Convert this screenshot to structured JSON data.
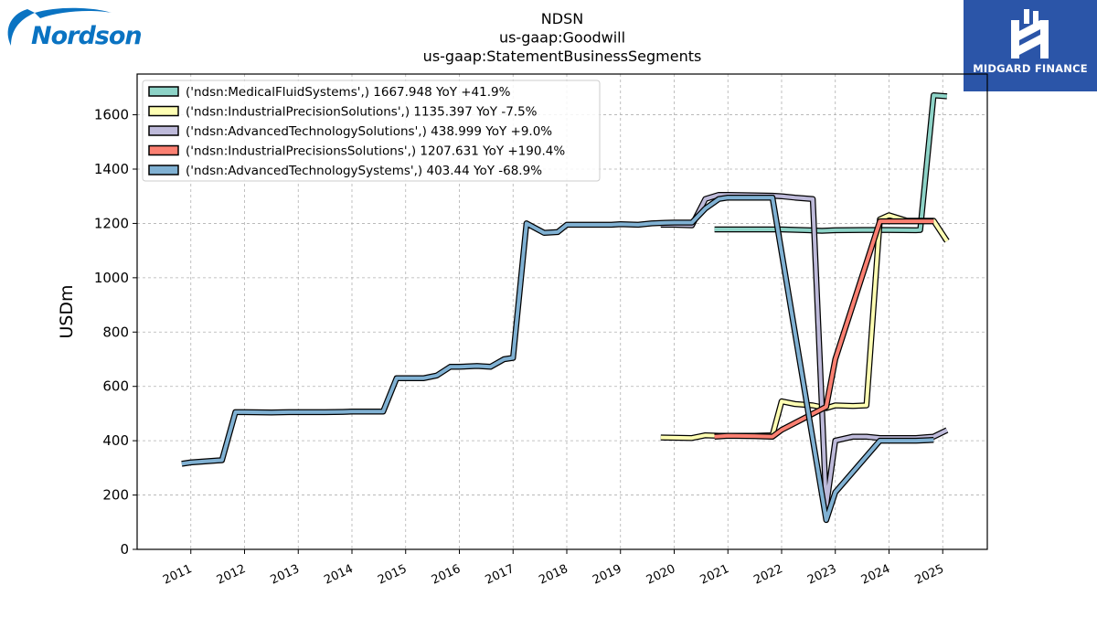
{
  "header": {
    "left_logo_text": "Nordson",
    "right_logo_text": "MIDGARD FINANCE"
  },
  "chart_data": {
    "type": "line",
    "title": [
      "NDSN",
      "us-gaap:Goodwill",
      "us-gaap:StatementBusinessSegments"
    ],
    "xlabel": "",
    "ylabel": "USDm",
    "xlim": [
      2010.0,
      2025.83
    ],
    "ylim": [
      0,
      1750
    ],
    "x_ticks": [
      "2011",
      "2012",
      "2013",
      "2014",
      "2015",
      "2016",
      "2017",
      "2018",
      "2019",
      "2020",
      "2021",
      "2022",
      "2023",
      "2024",
      "2025"
    ],
    "y_ticks": [
      0,
      200,
      400,
      600,
      800,
      1000,
      1200,
      1400,
      1600
    ],
    "grid": true,
    "legend_position": "top-left",
    "series": [
      {
        "name": "('ndsn:MedicalFluidSystems',) 1667.948 YoY +41.9%",
        "color": "#8dd3c7",
        "x": [
          2020.75,
          2021.0,
          2021.5,
          2021.83,
          2022.0,
          2022.5,
          2022.75,
          2023.0,
          2023.5,
          2023.83,
          2024.0,
          2024.5,
          2024.58,
          2024.83,
          2025.08
        ],
        "y": [
          1178,
          1178,
          1178,
          1178,
          1178,
          1175,
          1173,
          1175,
          1176,
          1176,
          1176,
          1175,
          1176,
          1672,
          1668
        ]
      },
      {
        "name": "('ndsn:IndustrialPrecisionSolutions',) 1135.397 YoY -7.5%",
        "color": "#ffffb3",
        "x": [
          2019.75,
          2020.0,
          2020.33,
          2020.58,
          2020.83,
          2021.0,
          2021.5,
          2021.83,
          2022.0,
          2022.25,
          2022.58,
          2022.83,
          2023.0,
          2023.33,
          2023.58,
          2023.83,
          2024.0,
          2024.33,
          2024.83,
          2025.08
        ],
        "y": [
          412,
          411,
          410,
          420,
          418,
          418,
          418,
          420,
          545,
          535,
          530,
          520,
          530,
          528,
          530,
          1215,
          1230,
          1210,
          1210,
          1135
        ]
      },
      {
        "name": "('ndsn:AdvancedTechnologySolutions',) 438.999 YoY +9.0%",
        "color": "#bebada",
        "x": [
          2019.75,
          2020.0,
          2020.33,
          2020.58,
          2020.83,
          2021.0,
          2021.5,
          2021.83,
          2022.0,
          2022.25,
          2022.58,
          2022.83,
          2023.0,
          2023.33,
          2023.58,
          2023.83,
          2024.0,
          2024.5,
          2024.83,
          2025.08
        ],
        "y": [
          1195,
          1195,
          1193,
          1290,
          1305,
          1305,
          1303,
          1302,
          1300,
          1295,
          1290,
          160,
          400,
          415,
          415,
          410,
          410,
          410,
          415,
          439
        ]
      },
      {
        "name": "('ndsn:IndustrialPrecisionsSolutions',) 1207.631 YoY +190.4%",
        "color": "#fb8072",
        "x": [
          2020.75,
          2021.0,
          2021.5,
          2021.83,
          2022.0,
          2022.83,
          2023.0,
          2023.83,
          2024.0,
          2024.5,
          2024.83
        ],
        "y": [
          415,
          418,
          417,
          415,
          440,
          525,
          700,
          1208,
          1208,
          1208,
          1208
        ]
      },
      {
        "name": "('ndsn:AdvancedTechnologySystems',) 403.44 YoY -68.9%",
        "color": "#80b1d3",
        "x": [
          2010.83,
          2011.0,
          2011.5,
          2011.58,
          2011.83,
          2012.0,
          2012.5,
          2012.83,
          2013.0,
          2013.5,
          2013.83,
          2014.0,
          2014.5,
          2014.58,
          2014.83,
          2015.0,
          2015.33,
          2015.58,
          2015.83,
          2016.0,
          2016.33,
          2016.58,
          2016.83,
          2017.0,
          2017.25,
          2017.58,
          2017.83,
          2018.0,
          2018.5,
          2018.83,
          2019.0,
          2019.33,
          2019.58,
          2019.83,
          2020.0,
          2020.33,
          2020.58,
          2020.83,
          2021.0,
          2021.5,
          2021.83,
          2022.83,
          2023.0,
          2023.83,
          2024.0,
          2024.5,
          2024.83
        ],
        "y": [
          315,
          320,
          327,
          328,
          505,
          505,
          504,
          505,
          505,
          505,
          506,
          507,
          507,
          507,
          630,
          630,
          630,
          640,
          672,
          672,
          675,
          672,
          700,
          705,
          1200,
          1165,
          1168,
          1195,
          1195,
          1195,
          1197,
          1195,
          1200,
          1202,
          1203,
          1203,
          1255,
          1290,
          1295,
          1295,
          1295,
          108,
          210,
          400,
          400,
          400,
          403
        ]
      }
    ]
  }
}
